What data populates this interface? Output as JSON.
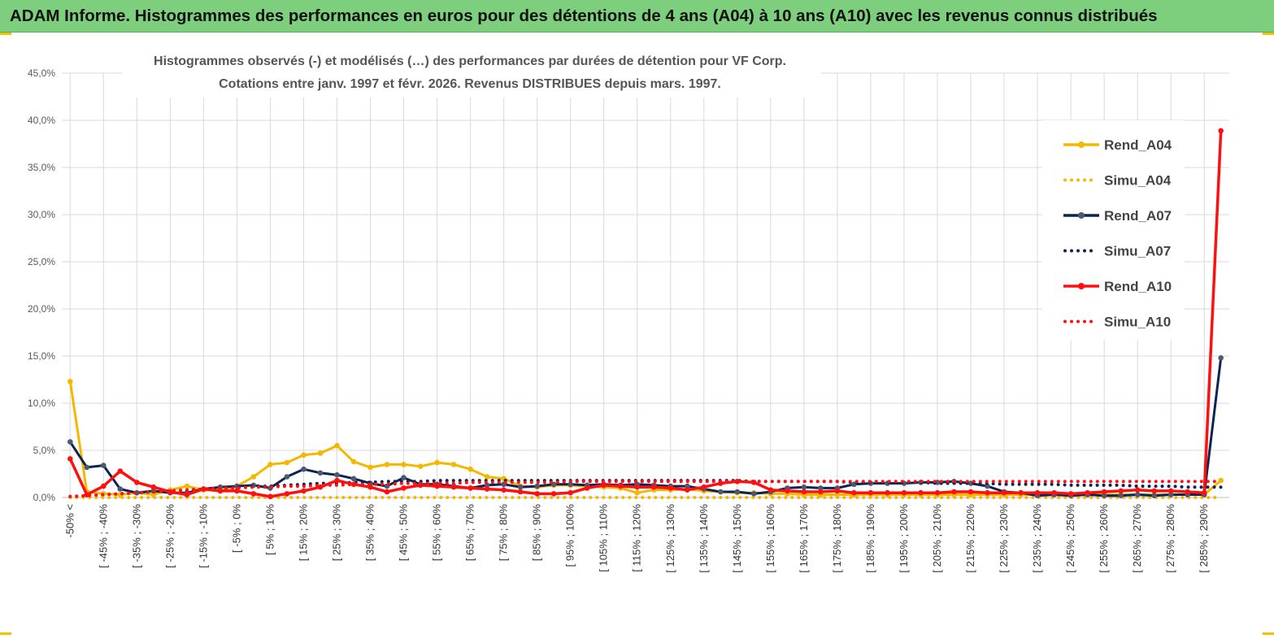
{
  "banner_title": "ADAM Informe. Histogrammes des performances en euros pour des détentions de 4 ans (A04) à 10 ans (A10) avec les revenus connus distribués",
  "colors": {
    "banner": "#7dcf7d",
    "a04": "#f5b800",
    "a07": "#0b2454",
    "a10": "#ff1010",
    "grid": "#d9d9d9"
  },
  "chart_data": {
    "type": "line",
    "title_lines": [
      "Histogrammes observés (-)  et modélisés (…) des performances  par durées de détention pour VF Corp.",
      "Cotations entre janv. 1997 et févr. 2026. Revenus DISTRIBUES depuis mars. 1997."
    ],
    "ylim": [
      0,
      45
    ],
    "y_ticks": [
      "0,0%",
      "5,0%",
      "10,0%",
      "15,0%",
      "20,0%",
      "25,0%",
      "30,0%",
      "35,0%",
      "40,0%",
      "45,0%"
    ],
    "y_tick_values": [
      0,
      5,
      10,
      15,
      20,
      25,
      30,
      35,
      40,
      45
    ],
    "x_labels": [
      "-50% <",
      "[ -45% ; -40%",
      "[ -35% ; -30%",
      "[ -25% ; -20%",
      "[ -15% ; -10%",
      "[ -5% ; 0%",
      "[ 5% ; 10%",
      "[ 15% ; 20%",
      "[ 25% ; 30%",
      "[ 35% ; 40%",
      "[ 45% ; 50%",
      "[ 55% ; 60%",
      "[ 65% ; 70%",
      "[ 75% ; 80%",
      "[ 85% ; 90%",
      "[ 95% ; 100%",
      "[ 105% ; 110%",
      "[ 115% ; 120%",
      "[ 125% ; 130%",
      "[ 135% ; 140%",
      "[ 145% ; 150%",
      "[ 155% ; 160%",
      "[ 165% ; 170%",
      "[ 175% ; 180%",
      "[ 185% ; 190%",
      "[ 195% ; 200%",
      "[ 205% ; 210%",
      "[ 215% ; 220%",
      "[ 225% ; 230%",
      "[ 235% ; 240%",
      "[ 245% ; 250%",
      "[ 255% ; 260%",
      "[ 265% ; 270%",
      "[ 275% ; 280%",
      "[ 285% ; 290%"
    ],
    "n_points": 70,
    "legend_position": "right",
    "series": [
      {
        "name": "Rend_A04",
        "style": "solid",
        "color": "#f5b800",
        "values": [
          12.3,
          0.6,
          0.4,
          0.3,
          0.5,
          0.3,
          0.8,
          1.2,
          0.8,
          0.7,
          1.2,
          2.2,
          3.5,
          3.7,
          4.5,
          4.7,
          5.5,
          3.8,
          3.2,
          3.5,
          3.5,
          3.3,
          3.7,
          3.5,
          3.0,
          2.2,
          2.0,
          1.2,
          1.1,
          1.3,
          1.3,
          1.2,
          1.1,
          1.0,
          0.5,
          0.8,
          0.8,
          0.9,
          0.7,
          0.6,
          0.5,
          0.5,
          0.4,
          0.4,
          0.3,
          0.3,
          0.3,
          0.3,
          0.3,
          0.3,
          0.3,
          0.3,
          0.3,
          0.3,
          0.3,
          0.3,
          0.3,
          0.3,
          0.3,
          0.3,
          0.3,
          0.3,
          0.3,
          0.3,
          0.3,
          0.3,
          0.3,
          0.3,
          0.3,
          1.8
        ]
      },
      {
        "name": "Simu_A04",
        "style": "dotted",
        "color": "#f5b800",
        "values": [
          0,
          0,
          0,
          0,
          0,
          0,
          0,
          0,
          0,
          0,
          0,
          0,
          0,
          0,
          0,
          0,
          0,
          0,
          0,
          0,
          0,
          0,
          0,
          0,
          0,
          0,
          0,
          0,
          0,
          0,
          0,
          0,
          0,
          0,
          0,
          0,
          0,
          0,
          0,
          0,
          0,
          0,
          0,
          0,
          0,
          0,
          0,
          0,
          0,
          0,
          0,
          0,
          0,
          0,
          0,
          0,
          0,
          0,
          0,
          0,
          0,
          0,
          0,
          0,
          0,
          0,
          0,
          0,
          0,
          0
        ]
      },
      {
        "name": "Rend_A07",
        "style": "solid",
        "color": "#0b2454",
        "values": [
          5.9,
          3.2,
          3.4,
          0.9,
          0.5,
          0.7,
          0.5,
          0.5,
          0.9,
          1.1,
          1.2,
          1.3,
          1.0,
          2.2,
          3.0,
          2.6,
          2.4,
          2.0,
          1.5,
          1.2,
          2.1,
          1.4,
          1.4,
          1.2,
          1.0,
          1.3,
          1.4,
          1.1,
          1.2,
          1.4,
          1.4,
          1.3,
          1.4,
          1.3,
          1.4,
          1.3,
          1.2,
          1.2,
          0.9,
          0.6,
          0.6,
          0.4,
          0.6,
          1.0,
          1.1,
          1.0,
          1.0,
          1.4,
          1.5,
          1.5,
          1.5,
          1.6,
          1.6,
          1.7,
          1.5,
          1.2,
          0.6,
          0.5,
          0.2,
          0.3,
          0.2,
          0.3,
          0.2,
          0.2,
          0.3,
          0.2,
          0.3,
          0.3,
          0.3,
          14.8
        ]
      },
      {
        "name": "Simu_A07",
        "style": "dotted",
        "color": "#0b2454",
        "values": [
          0.1,
          0.2,
          0.3,
          0.4,
          0.5,
          0.6,
          0.7,
          0.8,
          0.9,
          1.0,
          1.1,
          1.2,
          1.2,
          1.3,
          1.4,
          1.5,
          1.5,
          1.6,
          1.6,
          1.7,
          1.7,
          1.7,
          1.8,
          1.8,
          1.8,
          1.8,
          1.8,
          1.8,
          1.8,
          1.8,
          1.8,
          1.8,
          1.8,
          1.8,
          1.8,
          1.8,
          1.8,
          1.8,
          1.8,
          1.8,
          1.8,
          1.7,
          1.7,
          1.7,
          1.7,
          1.7,
          1.7,
          1.6,
          1.6,
          1.6,
          1.6,
          1.6,
          1.5,
          1.5,
          1.5,
          1.5,
          1.4,
          1.4,
          1.4,
          1.4,
          1.3,
          1.3,
          1.3,
          1.3,
          1.2,
          1.2,
          1.2,
          1.1,
          1.1,
          1.1
        ]
      },
      {
        "name": "Rend_A10",
        "style": "solid",
        "color": "#ff1010",
        "values": [
          4.1,
          0.3,
          1.2,
          2.8,
          1.6,
          1.1,
          0.6,
          0.3,
          0.9,
          0.7,
          0.7,
          0.4,
          0.1,
          0.4,
          0.7,
          1.1,
          1.8,
          1.4,
          1.1,
          0.6,
          1.0,
          1.3,
          1.2,
          1.1,
          1.0,
          0.9,
          0.8,
          0.6,
          0.4,
          0.4,
          0.5,
          1.0,
          1.3,
          1.2,
          1.1,
          1.1,
          1.0,
          0.8,
          1.1,
          1.5,
          1.7,
          1.6,
          0.8,
          0.7,
          0.6,
          0.6,
          0.7,
          0.5,
          0.5,
          0.5,
          0.5,
          0.5,
          0.5,
          0.6,
          0.6,
          0.5,
          0.5,
          0.5,
          0.5,
          0.5,
          0.4,
          0.5,
          0.6,
          0.7,
          0.8,
          0.7,
          0.7,
          0.6,
          0.5,
          38.9
        ]
      },
      {
        "name": "Simu_A10",
        "style": "dotted",
        "color": "#ff1010",
        "values": [
          0.1,
          0.2,
          0.3,
          0.4,
          0.5,
          0.6,
          0.7,
          0.8,
          0.9,
          1.0,
          1.0,
          1.1,
          1.1,
          1.2,
          1.2,
          1.3,
          1.3,
          1.4,
          1.4,
          1.4,
          1.5,
          1.5,
          1.5,
          1.5,
          1.6,
          1.6,
          1.6,
          1.6,
          1.6,
          1.6,
          1.7,
          1.7,
          1.7,
          1.7,
          1.7,
          1.7,
          1.7,
          1.7,
          1.7,
          1.7,
          1.7,
          1.7,
          1.7,
          1.7,
          1.7,
          1.7,
          1.7,
          1.7,
          1.7,
          1.7,
          1.7,
          1.7,
          1.7,
          1.7,
          1.7,
          1.7,
          1.7,
          1.7,
          1.7,
          1.7,
          1.7,
          1.7,
          1.7,
          1.7,
          1.7,
          1.7,
          1.7,
          1.7,
          1.7,
          1.7
        ]
      }
    ]
  }
}
